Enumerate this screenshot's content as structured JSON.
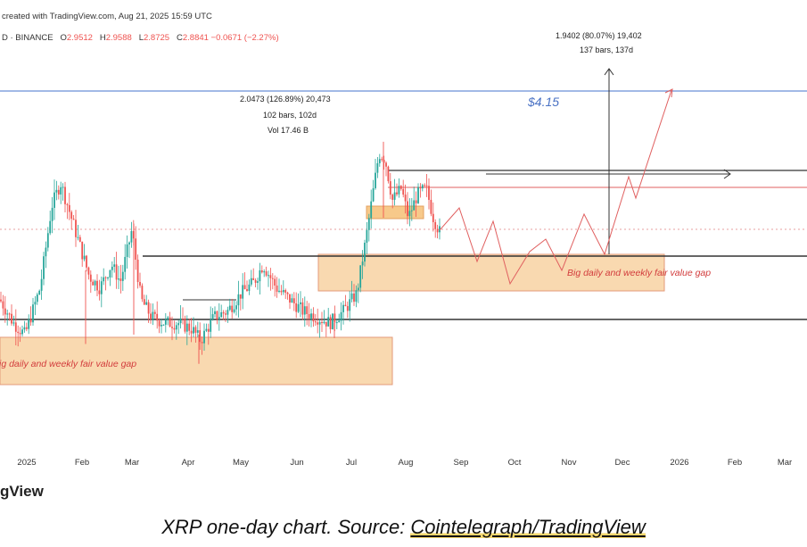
{
  "header": {
    "created": "created with TradingView.com, Aug 21, 2025 15:59 UTC",
    "symbol": "D · BINANCE",
    "o_label": "O",
    "o_val": "2.9512",
    "h_label": "H",
    "h_val": "2.9588",
    "l_label": "L",
    "l_val": "2.8725",
    "c_label": "C",
    "c_val": "2.8841 −0.0671 (−2.27%)"
  },
  "colors": {
    "up": "#26a69a",
    "down": "#ef5350",
    "target_line": "#6b8fd6",
    "projection": "#e06060",
    "fvg_fill": "#f9d9b0",
    "fvg_text": "#d23c3c"
  },
  "chart_data": {
    "type": "candlestick",
    "title": "",
    "x_ticks": [
      "2025",
      "Feb",
      "Mar",
      "Apr",
      "May",
      "Jun",
      "Jul",
      "Aug",
      "Sep",
      "Oct",
      "Nov",
      "Dec",
      "2026",
      "Feb",
      "Mar"
    ],
    "annotations": {
      "target_price": "$4.15",
      "measure_upper": [
        "1.9402 (80.07%) 19,402",
        "137 bars, 137d"
      ],
      "measure_lower": [
        "2.0473 (126.89%) 20,473",
        "102 bars, 102d",
        "Vol 17.46 B"
      ],
      "fvg_upper": "Big daily and weekly fair value gap",
      "fvg_lower": "Big daily and weekly fair value gap"
    },
    "approx_close_path": [
      {
        "month": "Jan 2025",
        "price": 2.4
      },
      {
        "month": "mid Jan 2025",
        "price": 3.2
      },
      {
        "month": "Feb 2025",
        "price": 2.6
      },
      {
        "month": "Mar 2025",
        "price": 2.3
      },
      {
        "month": "Apr 2025",
        "price": 2.0
      },
      {
        "month": "May 2025",
        "price": 2.3
      },
      {
        "month": "Jun 2025",
        "price": 2.1
      },
      {
        "month": "Jul 2025",
        "price": 2.9
      },
      {
        "month": "mid Jul 2025",
        "price": 3.6
      },
      {
        "month": "Aug 2025",
        "price": 3.1
      },
      {
        "month": "Aug 21 2025",
        "price": 2.88
      }
    ]
  },
  "caption": {
    "prefix": "XRP one-day chart. Source: ",
    "source": "Cointelegraph/TradingView"
  },
  "logo": "gView"
}
